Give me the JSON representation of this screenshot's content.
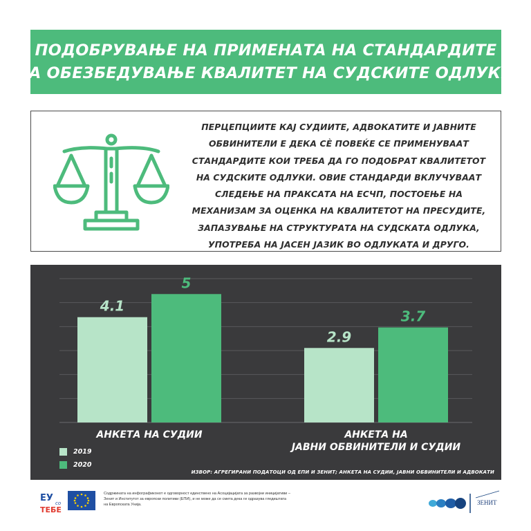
{
  "title": {
    "line1": "ПОДОБРУВАЊЕ НА ПРИМЕНАТА НА СТАНДАРДИТЕ",
    "line2": "ЗА ОБЕЗБЕДУВАЊЕ КВАЛИТЕТ НА СУДСКИТЕ ОДЛУКИ"
  },
  "description": {
    "lines": [
      "ПЕРЦЕПЦИИТЕ КАЈ СУДИИТЕ, АДВОКАТИТЕ И ЈАВНИТЕ",
      "ОБВИНИТЕЛИ Е ДЕКА СÈ ПОВЕЌЕ СЕ ПРИМЕНУВААТ",
      "СТАНДАРДИТЕ КОИ ТРЕБА ДА ГО ПОДОБРАТ КВАЛИТЕТОТ",
      "НА СУДСКИТЕ ОДЛУКИ. ОВИЕ СТАНДАРДИ ВКЛУЧУВААТ",
      "СЛЕДЕЊЕ НА ПРАКСАТА НА ЕСЧП, ПОСТОЕЊЕ НА",
      "МЕХАНИЗАМ ЗА ОЦЕНКА НА КВАЛИТЕТОТ НА ПРЕСУДИТЕ,",
      "ЗАПАЗУВАЊЕ НА СТРУКТУРАТА НА СУДСКАТА ОДЛУКА,",
      "УПОТРЕБА НА ЈАСЕН ЈАЗИК ВО ОДЛУКАТА И ДРУГО."
    ],
    "icon": "scales-of-justice-icon"
  },
  "chart_data": {
    "type": "bar",
    "categories": [
      [
        "АНКЕТА НА СУДИИ"
      ],
      [
        "АНКЕТА НА",
        "ЈАВНИ ОБВИНИТЕЛИ И СУДИИ"
      ]
    ],
    "series": [
      {
        "name": "2019",
        "values": [
          4.1,
          2.9
        ],
        "color": "#b7e4c8"
      },
      {
        "name": "2020",
        "values": [
          5,
          3.7
        ],
        "color": "#4dbb7c"
      }
    ],
    "value_labels": [
      [
        "4.1",
        "2.9"
      ],
      [
        "5",
        "3.7"
      ]
    ],
    "ylim": [
      0,
      5.6
    ],
    "grid": true,
    "legend": "bottom-left",
    "source": "ИЗВОР: АГРЕГИРАНИ ПОДАТОЦИ ОД ЕПИ И ЗЕНИТ; АНКЕТА НА СУДИИ, ЈАВНИ ОБВИНИТЕЛИ И АДВОКАТИ"
  },
  "footer": {
    "eu_logo_text": "ЕУ со ТЕБЕ",
    "disclaimer": "Содржината на инфографиконот е одговорност единствено на Асоцијацијата за развојни иницијативи – Зенит и Институтот за европски политики (ЕПИ), и не може да се смета дека ги одразува гледиштата на Европската Унија.",
    "zenit_name": "ЗЕНИТ"
  },
  "colors": {
    "accent": "#4dbb7c",
    "light_accent": "#b7e4c8",
    "panel": "#3a3a3c"
  }
}
